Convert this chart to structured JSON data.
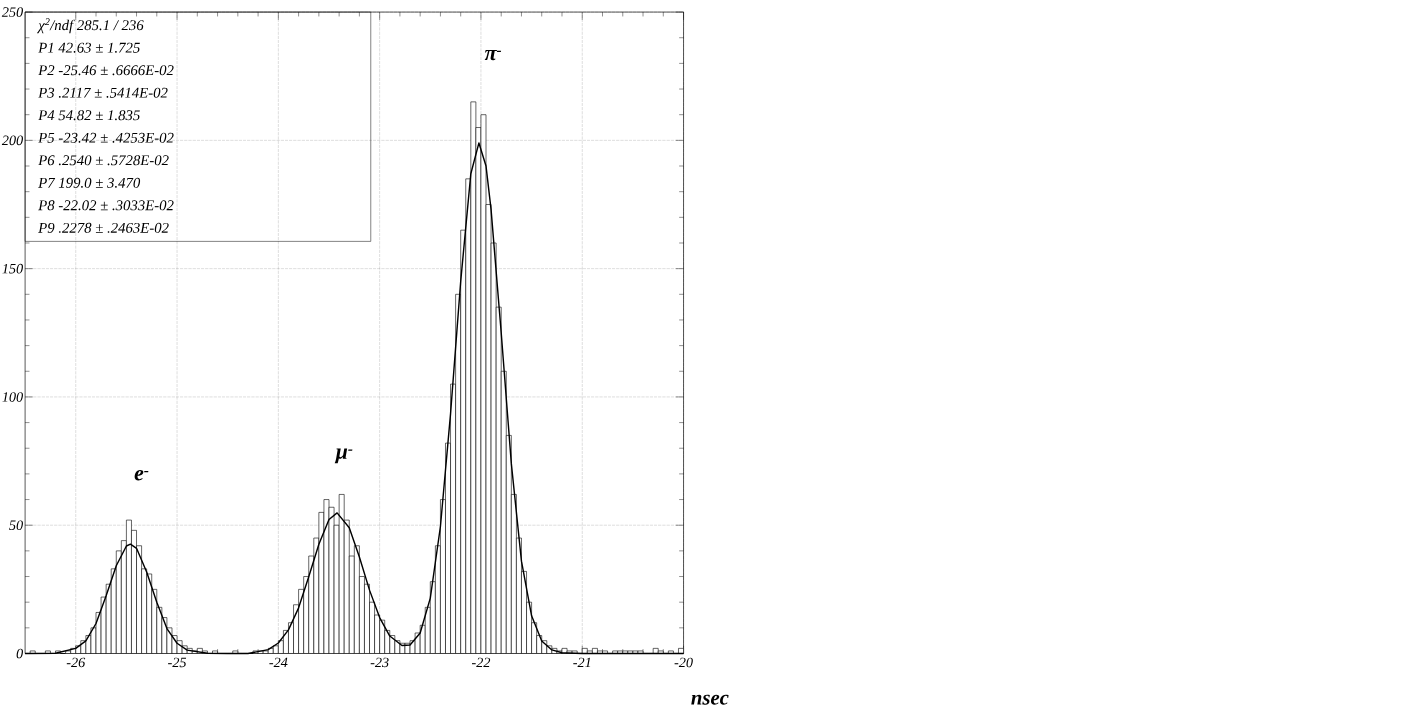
{
  "chart_data": {
    "type": "histogram",
    "xlabel": "nsec",
    "xlim": [
      -26.5,
      -20
    ],
    "ylim": [
      0,
      250
    ],
    "xticks": [
      -26,
      -25,
      -24,
      -23,
      -22,
      -21,
      -20
    ],
    "yticks": [
      0,
      50,
      100,
      150,
      200,
      250
    ],
    "grid": true,
    "series": [
      {
        "color": "#000000",
        "bins": [
          -26.5,
          -26.45,
          -26.4,
          -26.35,
          -26.3,
          -26.25,
          -26.2,
          -26.15,
          -26.1,
          -26.05,
          -26.0,
          -25.95,
          -25.9,
          -25.85,
          -25.8,
          -25.75,
          -25.7,
          -25.65,
          -25.6,
          -25.55,
          -25.5,
          -25.45,
          -25.4,
          -25.35,
          -25.3,
          -25.25,
          -25.2,
          -25.15,
          -25.1,
          -25.05,
          -25.0,
          -24.95,
          -24.9,
          -24.85,
          -24.8,
          -24.75,
          -24.7,
          -24.65,
          -24.6,
          -24.55,
          -24.5,
          -24.45,
          -24.4,
          -24.35,
          -24.3,
          -24.25,
          -24.2,
          -24.15,
          -24.1,
          -24.05,
          -24.0,
          -23.95,
          -23.9,
          -23.85,
          -23.8,
          -23.75,
          -23.7,
          -23.65,
          -23.6,
          -23.55,
          -23.5,
          -23.45,
          -23.4,
          -23.35,
          -23.3,
          -23.25,
          -23.2,
          -23.15,
          -23.1,
          -23.05,
          -23.0,
          -22.95,
          -22.9,
          -22.85,
          -22.8,
          -22.75,
          -22.7,
          -22.65,
          -22.6,
          -22.55,
          -22.5,
          -22.45,
          -22.4,
          -22.35,
          -22.3,
          -22.25,
          -22.2,
          -22.15,
          -22.1,
          -22.05,
          -22.0,
          -21.95,
          -21.9,
          -21.85,
          -21.8,
          -21.75,
          -21.7,
          -21.65,
          -21.6,
          -21.55,
          -21.5,
          -21.45,
          -21.4,
          -21.35,
          -21.3,
          -21.25,
          -21.2,
          -21.15,
          -21.1,
          -21.05,
          -21.0,
          -20.95,
          -20.9,
          -20.85,
          -20.8,
          -20.75,
          -20.7,
          -20.65,
          -20.6,
          -20.55,
          -20.5,
          -20.45,
          -20.4,
          -20.35,
          -20.3,
          -20.25,
          -20.2,
          -20.15,
          -20.1,
          -20.05,
          -20.0
        ],
        "values": [
          0,
          1,
          0,
          0,
          1,
          0,
          1,
          0,
          1,
          2,
          3,
          5,
          7,
          10,
          16,
          22,
          27,
          33,
          40,
          44,
          52,
          48,
          42,
          33,
          31,
          25,
          18,
          14,
          10,
          7,
          5,
          3,
          2,
          1,
          2,
          1,
          0,
          1,
          0,
          0,
          0,
          1,
          0,
          0,
          0,
          1,
          1,
          1,
          2,
          3,
          5,
          9,
          12,
          19,
          25,
          30,
          38,
          45,
          55,
          60,
          57,
          50,
          62,
          52,
          38,
          42,
          30,
          27,
          20,
          15,
          13,
          9,
          7,
          5,
          4,
          4,
          5,
          8,
          11,
          18,
          28,
          42,
          60,
          82,
          105,
          140,
          165,
          185,
          215,
          205,
          210,
          175,
          160,
          135,
          110,
          85,
          62,
          45,
          32,
          20,
          12,
          7,
          5,
          3,
          2,
          1,
          2,
          1,
          1,
          0,
          2,
          1,
          2,
          1,
          1,
          0,
          1,
          1,
          1,
          1,
          1,
          1,
          0,
          0,
          2,
          1,
          0,
          1,
          0,
          2
        ]
      },
      {
        "type": "line",
        "color": "#000000",
        "x": [
          -26.5,
          -26.2,
          -26.0,
          -25.9,
          -25.8,
          -25.7,
          -25.6,
          -25.5,
          -25.46,
          -25.4,
          -25.3,
          -25.2,
          -25.1,
          -25.0,
          -24.9,
          -24.7,
          -24.5,
          -24.3,
          -24.1,
          -24.0,
          -23.9,
          -23.8,
          -23.7,
          -23.6,
          -23.5,
          -23.42,
          -23.3,
          -23.2,
          -23.1,
          -23.0,
          -22.9,
          -22.78,
          -22.7,
          -22.6,
          -22.5,
          -22.4,
          -22.3,
          -22.2,
          -22.1,
          -22.02,
          -21.95,
          -21.9,
          -21.8,
          -21.7,
          -21.6,
          -21.5,
          -21.4,
          -21.3,
          -21.2,
          -21.0,
          -20.5,
          -20.0
        ],
        "values": [
          0,
          0.1,
          2.0,
          4.9,
          11.7,
          22.5,
          34.2,
          41.9,
          42.6,
          41,
          31.8,
          20,
          9.7,
          4,
          1.3,
          0.1,
          0,
          0,
          1.5,
          4.1,
          9.2,
          17.8,
          29.9,
          42.6,
          52.2,
          54.8,
          49,
          37.6,
          24.7,
          14,
          6.8,
          3.1,
          3.3,
          8,
          21.6,
          49.5,
          93.5,
          145,
          187,
          199,
          190,
          173,
          125,
          74,
          36,
          14.7,
          4.9,
          1.4,
          0.3,
          0,
          0,
          0
        ]
      }
    ],
    "annotations": [
      "χ$^{2}$/ndf   285.1  /  236",
      "P1   42.63 ±   1.725",
      "P2   -25.46 ±   .6666E-02",
      "P3   .2117 ±   .5414E-02",
      "P4   54.82 ±   1.835",
      "P5   -23.42 ±   .4253E-02",
      "P6   .2540 ±   .5728E-02",
      "P7   199.0 ±   3.470",
      "P8   -22.02 ±   .3033E-02",
      "P9   .2278 ±   .2463E-02",
      "e$^{-}$",
      "μ$^{-}$",
      "π$^{-}$"
    ]
  }
}
